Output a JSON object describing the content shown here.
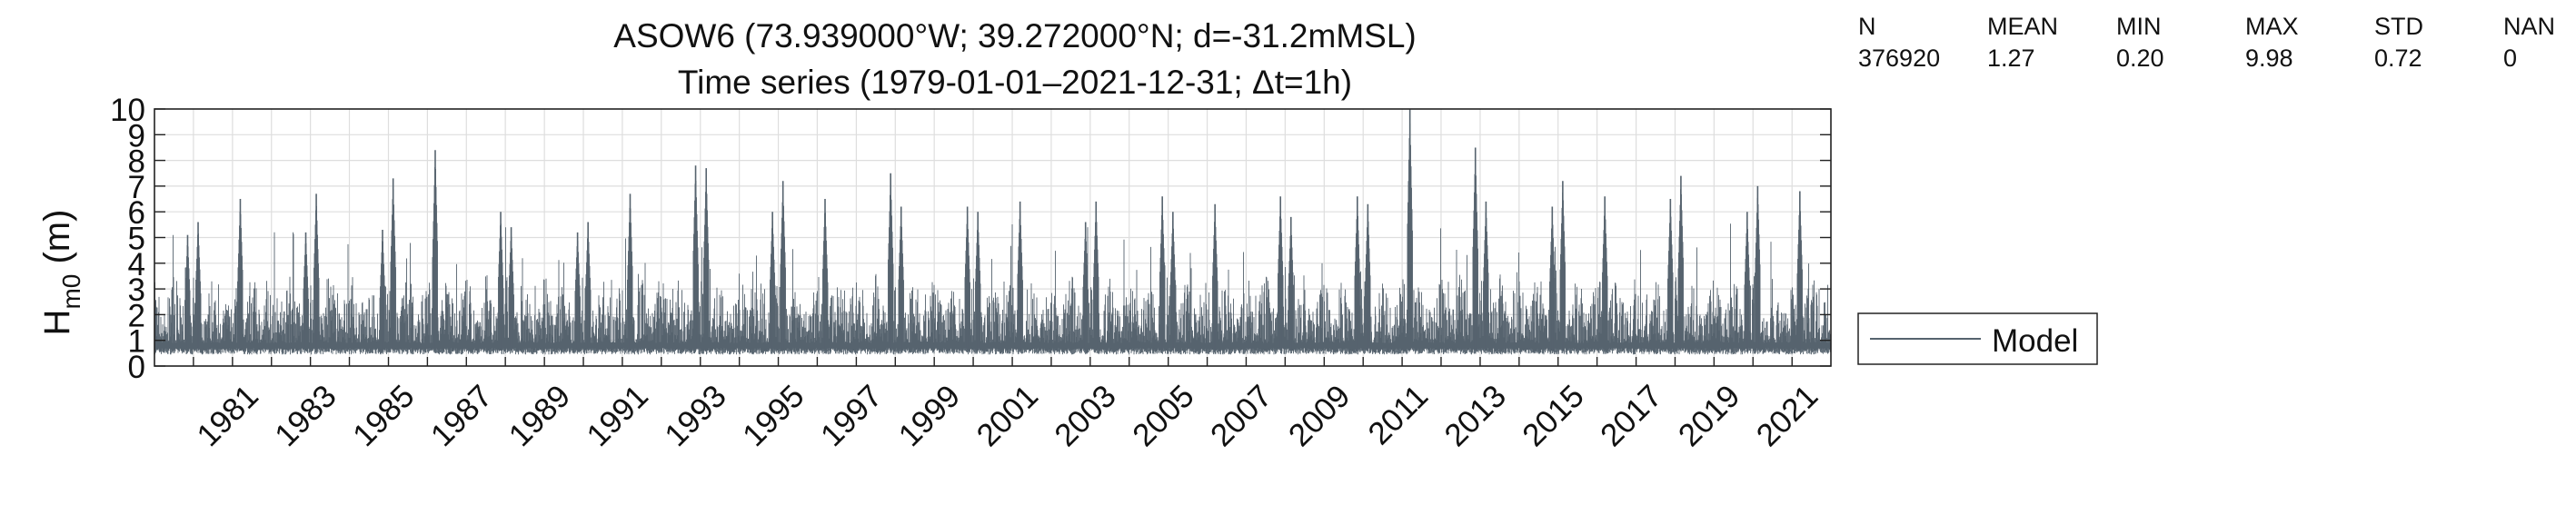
{
  "chart_data": {
    "type": "line",
    "title": "ASOW6 (73.939000°W; 39.272000°N; d=-31.2mMSL)",
    "subtitle": "Time series  (1979-01-01–2021-12-31; Δt=1h)",
    "ylabel": {
      "base": "H",
      "subscript": "m0",
      "unit": " (m)"
    },
    "xlabel": "",
    "xlim": [
      "1979-01-01",
      "2021-12-31"
    ],
    "ylim": [
      0,
      10
    ],
    "yticks": [
      "0",
      "1",
      "2",
      "3",
      "4",
      "5",
      "6",
      "7",
      "8",
      "9",
      "10"
    ],
    "xticks": [
      "1981",
      "1983",
      "1985",
      "1987",
      "1989",
      "1991",
      "1993",
      "1995",
      "1997",
      "1999",
      "2001",
      "2003",
      "2005",
      "2007",
      "2009",
      "2011",
      "2013",
      "2015",
      "2017",
      "2019",
      "2021"
    ],
    "grid": true,
    "legend_position": "bottom-right-outside",
    "series": [
      {
        "name": "Model",
        "color": "#56636e",
        "sampling": "annual peak Hm0 (visual estimate); dense hourly trace rendered between ~0.6 m baseline and these peaks",
        "years": [
          1979,
          1980,
          1981,
          1982,
          1983,
          1984,
          1985,
          1986,
          1987,
          1988,
          1989,
          1990,
          1991,
          1992,
          1993,
          1994,
          1995,
          1996,
          1997,
          1998,
          1999,
          2000,
          2001,
          2002,
          2003,
          2004,
          2005,
          2006,
          2007,
          2008,
          2009,
          2010,
          2011,
          2012,
          2013,
          2014,
          2015,
          2016,
          2017,
          2018,
          2019,
          2020,
          2021
        ],
        "peaks": [
          5.1,
          5.6,
          6.5,
          5.2,
          6.7,
          5.3,
          7.3,
          8.4,
          6.0,
          5.4,
          5.2,
          5.6,
          6.7,
          7.8,
          7.7,
          6.0,
          7.2,
          6.5,
          7.5,
          6.2,
          6.2,
          6.0,
          6.4,
          5.6,
          6.4,
          6.6,
          6.0,
          6.3,
          6.6,
          5.8,
          6.6,
          6.3,
          9.98,
          8.5,
          6.4,
          6.2,
          7.2,
          6.6,
          6.5,
          7.4,
          6.0,
          7.0,
          6.8
        ]
      }
    ]
  },
  "stats": {
    "headers": [
      "N",
      "MEAN",
      "MIN",
      "MAX",
      "STD",
      "NAN"
    ],
    "values": [
      "376920",
      "1.27",
      "0.20",
      "9.98",
      "0.72",
      "0"
    ]
  },
  "legend": {
    "label": "Model"
  },
  "colors": {
    "series": "#56636e",
    "grid": "#dedede",
    "axis": "#222222"
  }
}
